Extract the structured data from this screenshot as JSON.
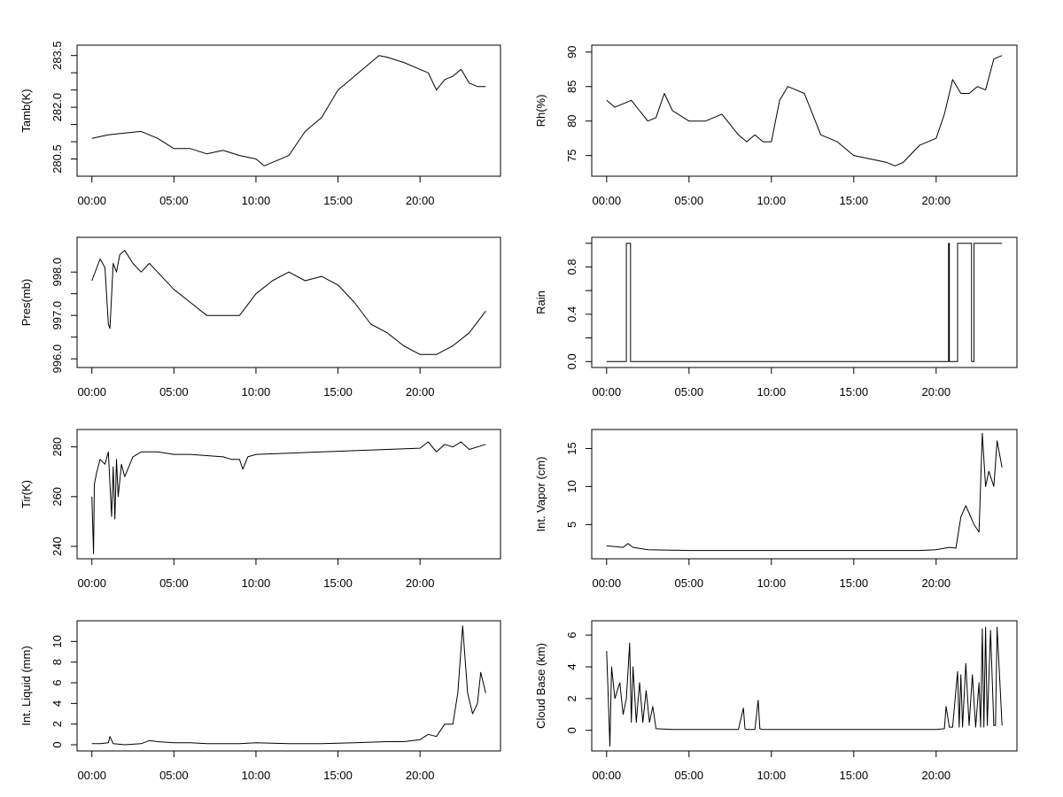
{
  "colors": {
    "background": "#ffffff",
    "line": "#000000",
    "frame": "#000000"
  },
  "x_axis": {
    "label": "",
    "ticks": [
      0,
      5,
      10,
      15,
      20
    ],
    "tick_labels": [
      "00:00",
      "05:00",
      "10:00",
      "15:00",
      "20:00"
    ],
    "range_hours": [
      0,
      24
    ]
  },
  "chart_data": [
    {
      "type": "line",
      "ylabel": "Tamb(K)",
      "ylim": [
        280.0,
        283.8
      ],
      "yticks": [
        280.5,
        281.0,
        281.5,
        282.0,
        282.5,
        283.0,
        283.5
      ],
      "ytick_labels": [
        "280.5",
        "",
        "",
        "282.0",
        "",
        "",
        "283.5"
      ],
      "series": [
        {
          "x": [
            0,
            1,
            2,
            3,
            4,
            5,
            6,
            7,
            8,
            9,
            10,
            10.5,
            11,
            12,
            13,
            14,
            15,
            16,
            17,
            17.5,
            18,
            19,
            20,
            20.5,
            21,
            21.5,
            22,
            22.5,
            23,
            23.5,
            24
          ],
          "y": [
            281.1,
            281.2,
            281.25,
            281.3,
            281.1,
            280.8,
            280.8,
            280.65,
            280.75,
            280.6,
            280.5,
            280.3,
            280.4,
            280.6,
            281.3,
            281.7,
            282.5,
            282.9,
            283.3,
            283.5,
            283.45,
            283.3,
            283.1,
            283.0,
            282.5,
            282.8,
            282.9,
            283.1,
            282.7,
            282.6,
            282.6
          ]
        }
      ]
    },
    {
      "type": "line",
      "ylabel": "Rh(%)",
      "ylim": [
        72,
        91
      ],
      "yticks": [
        75,
        80,
        85,
        90
      ],
      "ytick_labels": [
        "75",
        "80",
        "85",
        "90"
      ],
      "series": [
        {
          "x": [
            0,
            0.5,
            1,
            1.5,
            2,
            2.5,
            3,
            3.5,
            4,
            5,
            6,
            7,
            8,
            8.5,
            9,
            9.5,
            10,
            10.5,
            11,
            11.5,
            12,
            13,
            14,
            15,
            16,
            17,
            17.5,
            18,
            19,
            20,
            20.5,
            21,
            21.5,
            22,
            22.5,
            23,
            23.5,
            24
          ],
          "y": [
            83,
            82,
            82.5,
            83,
            81.5,
            80,
            80.5,
            84,
            81.5,
            80,
            80,
            81,
            78,
            77,
            78,
            77,
            77,
            83,
            85,
            84.5,
            84,
            78,
            77,
            75,
            74.5,
            74,
            73.5,
            74,
            76.5,
            77.5,
            81,
            86,
            84,
            84,
            85,
            84.5,
            89,
            89.5
          ]
        }
      ]
    },
    {
      "type": "line",
      "ylabel": "Pres(mb)",
      "ylim": [
        995.8,
        998.8
      ],
      "yticks": [
        996.0,
        996.5,
        997.0,
        997.5,
        998.0
      ],
      "ytick_labels": [
        "996.0",
        "",
        "997.0",
        "",
        "998.0"
      ],
      "series": [
        {
          "x": [
            0,
            0.5,
            0.8,
            1.0,
            1.1,
            1.3,
            1.5,
            1.7,
            2,
            2.5,
            3,
            3.5,
            4,
            5,
            6,
            7,
            8,
            9,
            10,
            11,
            12,
            13,
            14,
            15,
            16,
            17,
            18,
            19,
            20,
            21,
            22,
            23,
            24
          ],
          "y": [
            997.8,
            998.3,
            998.1,
            996.8,
            996.7,
            998.2,
            998.0,
            998.4,
            998.5,
            998.2,
            998.0,
            998.2,
            998.0,
            997.6,
            997.3,
            997.0,
            997.0,
            997.0,
            997.5,
            997.8,
            998.0,
            997.8,
            997.9,
            997.7,
            997.3,
            996.8,
            996.6,
            996.3,
            996.1,
            996.1,
            996.3,
            996.6,
            997.1
          ]
        }
      ]
    },
    {
      "type": "line",
      "ylabel": "Rain",
      "ylim": [
        -0.05,
        1.05
      ],
      "yticks": [
        0.0,
        0.2,
        0.4,
        0.6,
        0.8,
        1.0
      ],
      "ytick_labels": [
        "0.0",
        "",
        "0.4",
        "",
        "0.8",
        ""
      ],
      "step": true,
      "series": [
        {
          "x": [
            0,
            1.2,
            1.2,
            1.45,
            1.45,
            20.75,
            20.75,
            20.8,
            20.8,
            21.3,
            21.3,
            22.15,
            22.15,
            22.3,
            22.3,
            24
          ],
          "y": [
            0,
            0,
            1,
            1,
            0,
            0,
            1,
            1,
            0,
            0,
            1,
            1,
            0,
            0,
            1,
            1
          ]
        }
      ]
    },
    {
      "type": "line",
      "ylabel": "Tir(K)",
      "ylim": [
        235,
        287
      ],
      "yticks": [
        240,
        260,
        280
      ],
      "ytick_labels": [
        "240",
        "260",
        "280"
      ],
      "series": [
        {
          "x": [
            0,
            0.1,
            0.15,
            0.3,
            0.5,
            0.8,
            1,
            1.2,
            1.3,
            1.4,
            1.5,
            1.6,
            1.8,
            2,
            2.5,
            3,
            4,
            5,
            6,
            7,
            8,
            8.5,
            9,
            9.2,
            9.5,
            10,
            12,
            14,
            16,
            18,
            20,
            20.5,
            21,
            21.5,
            22,
            22.5,
            23,
            23.5,
            24
          ],
          "y": [
            260,
            237,
            265,
            270,
            275,
            273,
            278,
            252,
            272,
            251,
            275,
            260,
            273,
            268,
            276,
            278,
            278,
            277,
            277,
            276.5,
            276,
            275,
            275,
            271,
            276,
            277,
            277.5,
            278,
            278.5,
            279,
            279.5,
            282,
            278,
            281,
            280,
            282,
            279,
            280,
            281
          ]
        }
      ]
    },
    {
      "type": "line",
      "ylabel": "Int. Vapor (cm)",
      "ylim": [
        0.5,
        17.5
      ],
      "yticks": [
        5,
        10,
        15
      ],
      "ytick_labels": [
        "5",
        "10",
        "15"
      ],
      "series": [
        {
          "x": [
            0,
            1,
            1.3,
            1.6,
            2.5,
            5,
            10,
            15,
            19,
            20,
            20.8,
            21.2,
            21.5,
            21.8,
            22,
            22.3,
            22.6,
            22.8,
            23,
            23.2,
            23.5,
            23.7,
            24
          ],
          "y": [
            2.2,
            2.0,
            2.5,
            2.0,
            1.7,
            1.6,
            1.6,
            1.6,
            1.6,
            1.7,
            2.0,
            1.9,
            6.0,
            7.5,
            6.5,
            5.0,
            4.0,
            17.0,
            10.0,
            12.0,
            10.0,
            16.0,
            12.5
          ]
        }
      ]
    },
    {
      "type": "line",
      "ylabel": "Int. Liquid (mm)",
      "ylim": [
        -0.6,
        12.0
      ],
      "yticks": [
        0,
        2,
        4,
        6,
        8,
        10
      ],
      "ytick_labels": [
        "0",
        "2",
        "4",
        "6",
        "8",
        "10"
      ],
      "series": [
        {
          "x": [
            0,
            0.5,
            1,
            1.1,
            1.3,
            2,
            3,
            3.5,
            4,
            5,
            6,
            7,
            8,
            9,
            10,
            12,
            14,
            16,
            18,
            19,
            20,
            20.5,
            21,
            21.5,
            22,
            22.3,
            22.6,
            22.9,
            23.2,
            23.5,
            23.7,
            24
          ],
          "y": [
            0.1,
            0.1,
            0.2,
            0.8,
            0.1,
            0.0,
            0.1,
            0.4,
            0.3,
            0.2,
            0.2,
            0.1,
            0.1,
            0.1,
            0.2,
            0.1,
            0.1,
            0.2,
            0.3,
            0.3,
            0.5,
            1.0,
            0.8,
            2.0,
            2.0,
            5.0,
            11.5,
            5.0,
            3.0,
            4.0,
            7.0,
            5.0
          ]
        }
      ]
    },
    {
      "type": "line",
      "ylabel": "Cloud Base (km)",
      "ylim": [
        -1.3,
        6.9
      ],
      "yticks": [
        0,
        2,
        4,
        6
      ],
      "ytick_labels": [
        "0",
        "2",
        "4",
        "6"
      ],
      "series": [
        {
          "x": [
            0,
            0.1,
            0.2,
            0.3,
            0.5,
            0.8,
            1.0,
            1.2,
            1.4,
            1.5,
            1.6,
            1.8,
            2.0,
            2.2,
            2.4,
            2.6,
            2.8,
            3.0,
            4,
            5,
            6,
            7,
            8,
            8.3,
            8.4,
            8.5,
            9,
            9.2,
            9.3,
            9.5,
            10,
            12,
            14,
            16,
            18,
            20,
            20.5,
            20.6,
            20.8,
            21.0,
            21.3,
            21.4,
            21.5,
            21.6,
            21.8,
            22.0,
            22.2,
            22.4,
            22.6,
            22.7,
            22.8,
            22.9,
            23.0,
            23.1,
            23.3,
            23.5,
            23.6,
            23.7,
            24
          ],
          "y": [
            5,
            2,
            -1,
            4,
            2,
            3,
            1,
            2,
            5.5,
            0.5,
            4,
            0.5,
            3,
            0.5,
            2.5,
            0.5,
            1.5,
            0.1,
            0.05,
            0.05,
            0.05,
            0.05,
            0.05,
            1.4,
            0.1,
            0.05,
            0.05,
            1.9,
            0.1,
            0.05,
            0.05,
            0.05,
            0.05,
            0.05,
            0.05,
            0.05,
            0.1,
            1.5,
            0.2,
            0.2,
            3.7,
            0.2,
            3.5,
            0.2,
            4.2,
            0.3,
            3.5,
            0.2,
            3.0,
            0.2,
            6.4,
            0.2,
            6.5,
            0.3,
            6.3,
            0.3,
            0.3,
            6.5,
            0.3
          ]
        }
      ]
    }
  ]
}
